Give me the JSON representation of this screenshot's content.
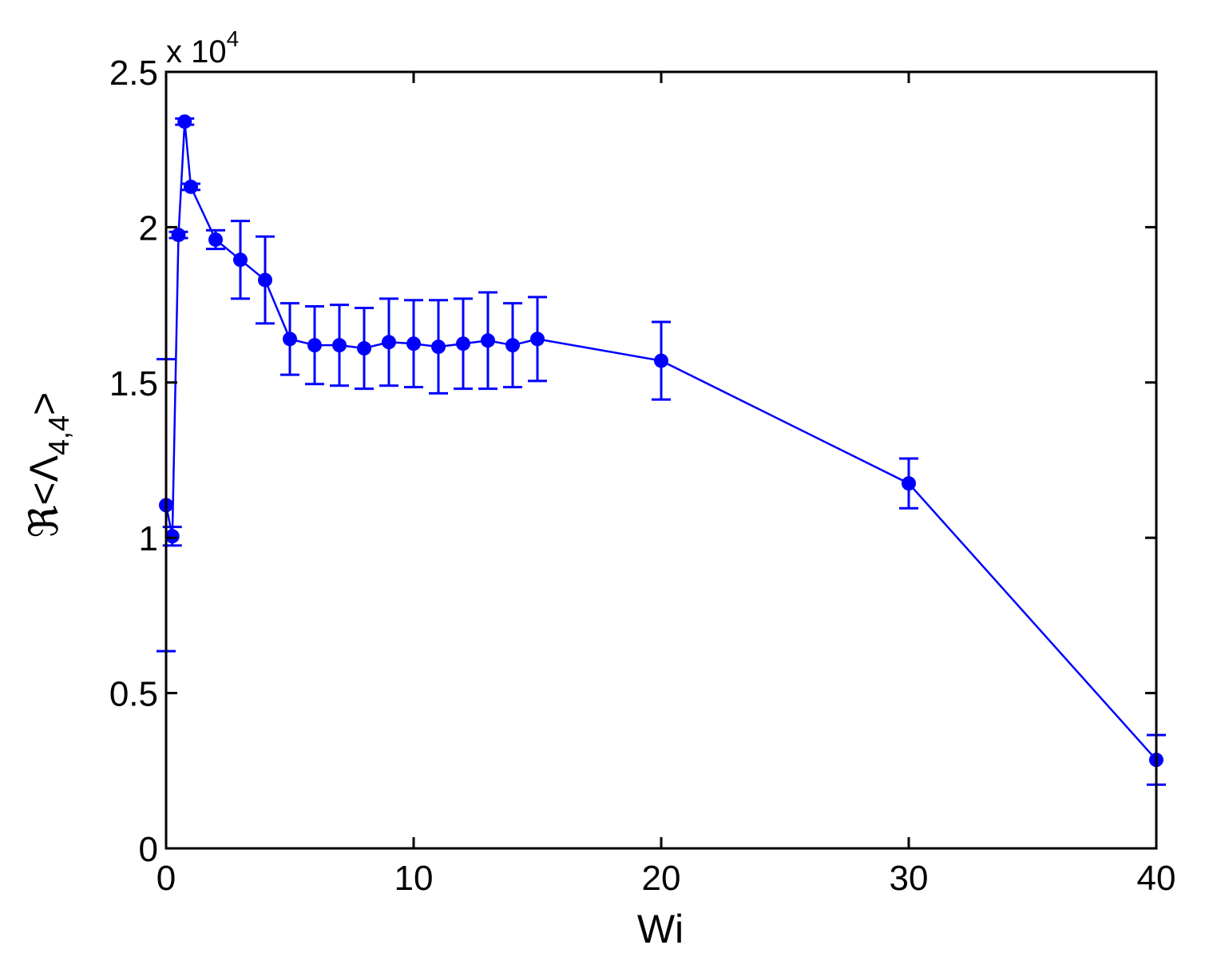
{
  "chart_data": {
    "type": "line",
    "xlabel": "Wi",
    "ylabel": "ℜ<Λ",
    "ylabel_subscript": "4,4",
    "ylabel_close": ">",
    "y_multiplier": {
      "base": "x 10",
      "exponent": "4"
    },
    "xlim": [
      0,
      40
    ],
    "ylim": [
      0,
      25000
    ],
    "xticks": [
      0,
      10,
      20,
      30,
      40
    ],
    "xtick_labels": [
      "0",
      "10",
      "20",
      "30",
      "40"
    ],
    "yticks": [
      0,
      5000,
      10000,
      15000,
      20000,
      25000
    ],
    "ytick_labels": [
      "0",
      "0.5",
      "1",
      "1.5",
      "2",
      "2.5"
    ],
    "grid": false,
    "line_color": "#0000ff",
    "series": [
      {
        "marker": "circle",
        "points": [
          {
            "x": 0.0,
            "y": 11050,
            "err": 4700
          },
          {
            "x": 0.25,
            "y": 10050,
            "err": 300
          },
          {
            "x": 0.5,
            "y": 19750,
            "err": 100
          },
          {
            "x": 0.75,
            "y": 23400,
            "err": 100
          },
          {
            "x": 1.0,
            "y": 21300,
            "err": 100
          },
          {
            "x": 2.0,
            "y": 19600,
            "err": 300
          },
          {
            "x": 3.0,
            "y": 18950,
            "err": 1250
          },
          {
            "x": 4.0,
            "y": 18300,
            "err": 1400
          },
          {
            "x": 5.0,
            "y": 16400,
            "err": 1150
          },
          {
            "x": 6.0,
            "y": 16200,
            "err": 1250
          },
          {
            "x": 7.0,
            "y": 16200,
            "err": 1300
          },
          {
            "x": 8.0,
            "y": 16100,
            "err": 1300
          },
          {
            "x": 9.0,
            "y": 16300,
            "err": 1400
          },
          {
            "x": 10.0,
            "y": 16250,
            "err": 1400
          },
          {
            "x": 11.0,
            "y": 16150,
            "err": 1500
          },
          {
            "x": 12.0,
            "y": 16250,
            "err": 1450
          },
          {
            "x": 13.0,
            "y": 16350,
            "err": 1550
          },
          {
            "x": 14.0,
            "y": 16200,
            "err": 1350
          },
          {
            "x": 15.0,
            "y": 16400,
            "err": 1350
          },
          {
            "x": 20.0,
            "y": 15700,
            "err": 1250
          },
          {
            "x": 30.0,
            "y": 11750,
            "err": 800
          },
          {
            "x": 40.0,
            "y": 2850,
            "err": 800
          }
        ]
      }
    ]
  }
}
